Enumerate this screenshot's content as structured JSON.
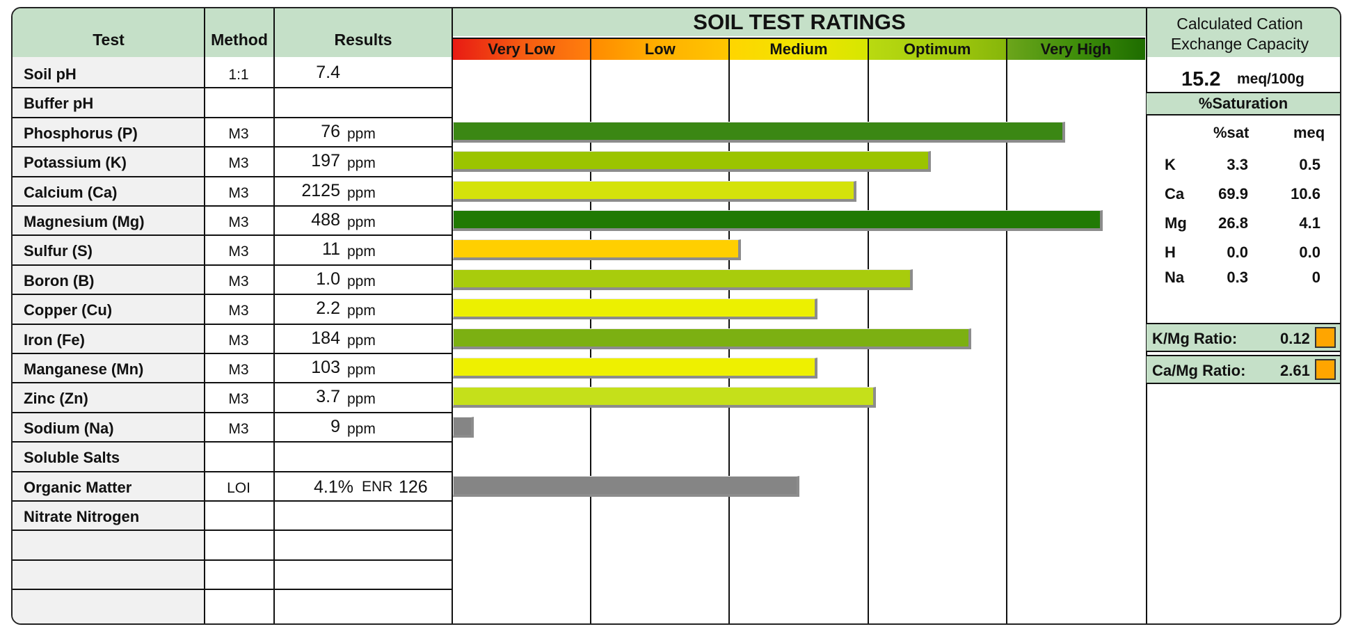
{
  "header": {
    "test": "Test",
    "method": "Method",
    "results": "Results",
    "ratings_title": "SOIL TEST RATINGS",
    "cec_title_line1": "Calculated Cation",
    "cec_title_line2": "Exchange Capacity"
  },
  "rating_bands": [
    {
      "label": "Very Low",
      "gradient": [
        "#e81a13",
        "#f55b12",
        "#ff7f0c"
      ]
    },
    {
      "label": "Low",
      "gradient": [
        "#ff8a00",
        "#ffb000",
        "#ffc600"
      ]
    },
    {
      "label": "Medium",
      "gradient": [
        "#ffd500",
        "#f2e400",
        "#d6e600"
      ]
    },
    {
      "label": "Optimum",
      "gradient": [
        "#b9da10",
        "#a6cc0e",
        "#86b60a"
      ]
    },
    {
      "label": "Very High",
      "gradient": [
        "#6ca51b",
        "#3f8e0a",
        "#1e6d00"
      ]
    }
  ],
  "rows": [
    {
      "test": "Soil pH",
      "method": "1:1",
      "value": "7.4",
      "unit": ""
    },
    {
      "test": "Buffer pH",
      "method": "",
      "value": "",
      "unit": ""
    },
    {
      "test": "Phosphorus (P)",
      "method": "M3",
      "value": "76",
      "unit": "ppm"
    },
    {
      "test": "Potassium (K)",
      "method": "M3",
      "value": "197",
      "unit": "ppm"
    },
    {
      "test": "Calcium (Ca)",
      "method": "M3",
      "value": "2125",
      "unit": "ppm"
    },
    {
      "test": "Magnesium (Mg)",
      "method": "M3",
      "value": "488",
      "unit": "ppm"
    },
    {
      "test": "Sulfur (S)",
      "method": "M3",
      "value": "11",
      "unit": "ppm"
    },
    {
      "test": "Boron (B)",
      "method": "M3",
      "value": "1.0",
      "unit": "ppm"
    },
    {
      "test": "Copper (Cu)",
      "method": "M3",
      "value": "2.2",
      "unit": "ppm"
    },
    {
      "test": "Iron (Fe)",
      "method": "M3",
      "value": "184",
      "unit": "ppm"
    },
    {
      "test": "Manganese (Mn)",
      "method": "M3",
      "value": "103",
      "unit": "ppm"
    },
    {
      "test": "Zinc (Zn)",
      "method": "M3",
      "value": "3.7",
      "unit": "ppm"
    },
    {
      "test": "Sodium (Na)",
      "method": "M3",
      "value": "9",
      "unit": "ppm"
    },
    {
      "test": "Soluble Salts",
      "method": "",
      "value": "",
      "unit": ""
    },
    {
      "test": "Organic Matter",
      "method": "LOI",
      "value": "4.1%",
      "unit": "",
      "extra_label": "ENR",
      "extra_value": "126"
    },
    {
      "test": "Nitrate Nitrogen",
      "method": "",
      "value": "",
      "unit": ""
    },
    {
      "test": "",
      "method": "",
      "value": "",
      "unit": ""
    },
    {
      "test": "",
      "method": "",
      "value": "",
      "unit": ""
    },
    {
      "test": "",
      "method": "",
      "value": "",
      "unit": ""
    }
  ],
  "chart_data": {
    "type": "bar",
    "orientation": "horizontal",
    "title": "SOIL TEST RATINGS",
    "categories": [
      "Very Low",
      "Low",
      "Medium",
      "Optimum",
      "Very High"
    ],
    "scale": "rating bands, 5 equal divisions (0 to 5)",
    "xlim": [
      0,
      5
    ],
    "grid": true,
    "bars": [
      {
        "test": "Phosphorus (P)",
        "rating": 4.42,
        "color": "#3b8714"
      },
      {
        "test": "Potassium (K)",
        "rating": 3.45,
        "color": "#9bc400"
      },
      {
        "test": "Calcium (Ca)",
        "rating": 2.91,
        "color": "#d4e20b"
      },
      {
        "test": "Magnesium (Mg)",
        "rating": 4.69,
        "color": "#217a04"
      },
      {
        "test": "Sulfur (S)",
        "rating": 2.08,
        "color": "#ffcf00"
      },
      {
        "test": "Boron (B)",
        "rating": 3.32,
        "color": "#a8cc0c"
      },
      {
        "test": "Copper (Cu)",
        "rating": 2.63,
        "color": "#ecf000"
      },
      {
        "test": "Iron (Fe)",
        "rating": 3.74,
        "color": "#7cb012"
      },
      {
        "test": "Manganese (Mn)",
        "rating": 2.63,
        "color": "#eef000"
      },
      {
        "test": "Zinc (Zn)",
        "rating": 3.05,
        "color": "#c5e01a"
      },
      {
        "test": "Sodium (Na)",
        "rating": 0.15,
        "color": "#858585"
      },
      {
        "test": "Organic Matter",
        "rating": 2.5,
        "color": "#858585"
      }
    ]
  },
  "cec": {
    "value": "15.2",
    "unit": "meq/100g"
  },
  "saturation": {
    "title": "%Saturation",
    "col_sat": "%sat",
    "col_meq": "meq",
    "rows": [
      {
        "ion": "K",
        "sat": "3.3",
        "meq": "0.5"
      },
      {
        "ion": "Ca",
        "sat": "69.9",
        "meq": "10.6"
      },
      {
        "ion": "Mg",
        "sat": "26.8",
        "meq": "4.1"
      },
      {
        "ion": "H",
        "sat": "0.0",
        "meq": "0.0"
      },
      {
        "ion": "Na",
        "sat": "0.3",
        "meq": "0"
      }
    ]
  },
  "ratios": [
    {
      "label": "K/Mg Ratio:",
      "value": "0.12",
      "color": "#ffa500"
    },
    {
      "label": "Ca/Mg Ratio:",
      "value": "2.61",
      "color": "#ffa500"
    }
  ]
}
